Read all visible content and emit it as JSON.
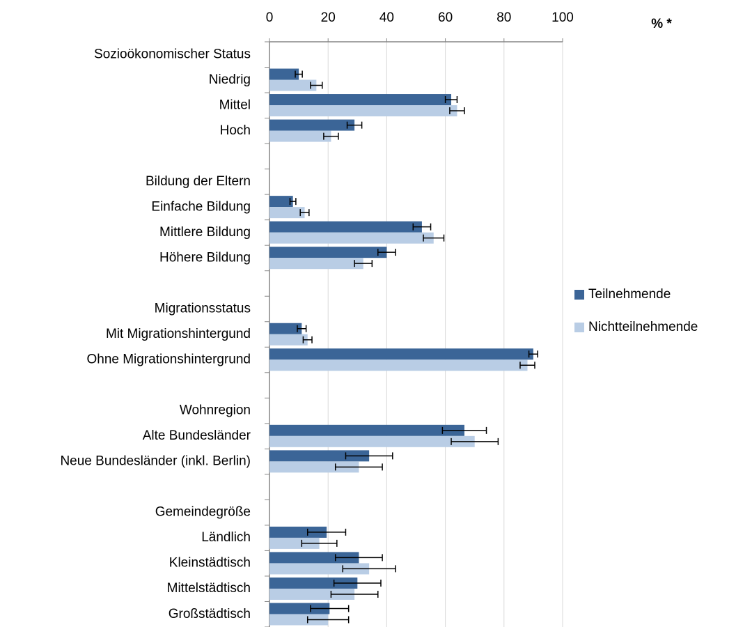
{
  "chart_data": {
    "type": "bar",
    "orientation": "horizontal",
    "title": "% *",
    "categories": [
      "Sozioökonomischer Status",
      "Niedrig",
      "Mittel",
      "Hoch",
      null,
      "Bildung der Eltern",
      "Einfache Bildung",
      "Mittlere Bildung",
      "Höhere Bildung",
      null,
      "Migrationsstatus",
      "Mit Migrationshintergund",
      "Ohne Migrationshintergrund",
      null,
      "Wohnregion",
      "Alte Bundesländer",
      "Neue Bundesländer (inkl. Berlin)",
      null,
      "Gemeindegröße",
      "Ländlich",
      "Kleinstädtisch",
      "Mittelstädtisch",
      "Großstädtisch"
    ],
    "series": [
      {
        "name": "Teilnehmende",
        "color": "#3b6597",
        "values": [
          null,
          10,
          62,
          29,
          null,
          null,
          8,
          52,
          40,
          null,
          null,
          11,
          90,
          null,
          null,
          66.5,
          34,
          null,
          null,
          19.5,
          30.5,
          30,
          20.5
        ],
        "errors": [
          null,
          1.2,
          2,
          2.5,
          null,
          null,
          1,
          3,
          3,
          null,
          null,
          1.5,
          1.5,
          null,
          null,
          7.5,
          8,
          null,
          null,
          6.5,
          8,
          8,
          6.5
        ]
      },
      {
        "name": "Nichtteilnehmende",
        "color": "#b9cde5",
        "values": [
          null,
          16,
          64,
          21,
          null,
          null,
          12,
          56,
          32,
          null,
          null,
          13,
          88,
          null,
          null,
          70,
          30.5,
          null,
          null,
          17,
          34,
          29,
          20
        ],
        "errors": [
          null,
          2,
          2.5,
          2.5,
          null,
          null,
          1.5,
          3.5,
          3,
          null,
          null,
          1.5,
          2.5,
          null,
          null,
          8,
          8,
          null,
          null,
          6,
          9,
          8,
          7
        ]
      }
    ],
    "xlim": [
      0,
      100
    ],
    "xticks": [
      0,
      20,
      40,
      60,
      80,
      100
    ],
    "grid": true,
    "legend": "right"
  }
}
